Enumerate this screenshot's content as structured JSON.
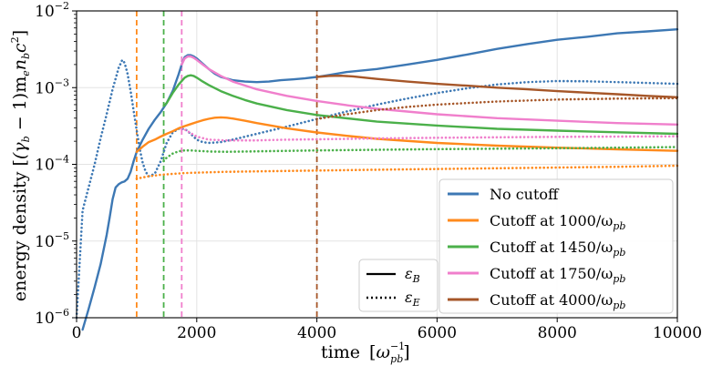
{
  "chart_data": {
    "type": "line",
    "title": "",
    "xlabel": {
      "text": "time",
      "unit_base": "ω",
      "unit_sub": "pb",
      "unit_sup": "−1"
    },
    "ylabel": {
      "prefix": "energy density ",
      "math": "(γ",
      "sub1": "b",
      "mid": " − 1)m",
      "sub2": "e",
      "n": "n",
      "sub3": "b",
      "c": "c",
      "sup": "2"
    },
    "xlim": [
      0,
      10000
    ],
    "ylim": [
      1e-06,
      0.01
    ],
    "yscale": "log",
    "x_ticks": [
      0,
      2000,
      4000,
      6000,
      8000,
      10000
    ],
    "x_tick_labels": [
      "0",
      "2000",
      "4000",
      "6000",
      "8000",
      "10000"
    ],
    "y_ticks": [
      {
        "base": "10",
        "exp": "−6",
        "value": 1e-06
      },
      {
        "base": "10",
        "exp": "−5",
        "value": 1e-05
      },
      {
        "base": "10",
        "exp": "−4",
        "value": 0.0001
      },
      {
        "base": "10",
        "exp": "−3",
        "value": 0.001
      },
      {
        "base": "10",
        "exp": "−2",
        "value": 0.01
      }
    ],
    "grid": true,
    "series": [
      {
        "name": "No cutoff",
        "color": "#3d78b4",
        "style": "solid",
        "x": [
          100,
          200,
          300,
          400,
          500,
          550,
          600,
          650,
          700,
          750,
          800,
          850,
          900,
          950,
          1000,
          1100,
          1200,
          1300,
          1400,
          1500,
          1600,
          1700,
          1750,
          1800,
          1850,
          1900,
          1950,
          2000,
          2100,
          2200,
          2300,
          2400,
          2600,
          2800,
          3000,
          3200,
          3400,
          3600,
          3800,
          4000,
          4200,
          4500,
          5000,
          5500,
          6000,
          6500,
          7000,
          7500,
          8000,
          8500,
          9000,
          9500,
          10000
        ],
        "y": [
          7e-07,
          1.3e-06,
          2.5e-06,
          5e-06,
          1.2e-05,
          2e-05,
          3.5e-05,
          5e-05,
          5.5e-05,
          5.8e-05,
          6e-05,
          6.5e-05,
          8e-05,
          0.00011,
          0.000145,
          0.00021,
          0.00029,
          0.00038,
          0.00048,
          0.00063,
          0.0009,
          0.0015,
          0.002,
          0.0025,
          0.00265,
          0.00265,
          0.00255,
          0.0024,
          0.00205,
          0.00175,
          0.00152,
          0.00138,
          0.00125,
          0.0012,
          0.00118,
          0.0012,
          0.00125,
          0.00128,
          0.00132,
          0.00138,
          0.00146,
          0.0016,
          0.00175,
          0.002,
          0.0023,
          0.0027,
          0.0032,
          0.0037,
          0.0042,
          0.0046,
          0.0051,
          0.0054,
          0.00575
        ]
      },
      {
        "name": "E field (No cutoff)",
        "color": "#3d78b4",
        "style": "dotted",
        "x": [
          0,
          100,
          200,
          300,
          400,
          500,
          600,
          700,
          760,
          800,
          850,
          900,
          950,
          1000,
          1050,
          1100,
          1150,
          1200,
          1300,
          1400,
          1500,
          1600,
          1700,
          1800,
          1900,
          2000,
          2100,
          2200,
          2400,
          2600,
          3000,
          3500,
          4000,
          4500,
          5000,
          5500,
          6000,
          6500,
          7000,
          7500,
          8000,
          8500,
          9000,
          9500,
          10000
        ],
        "y": [
          1e-06,
          2.5e-05,
          5e-05,
          0.0001,
          0.00022,
          0.00045,
          0.00095,
          0.0018,
          0.0023,
          0.0021,
          0.0015,
          0.0009,
          0.0005,
          0.00028,
          0.00016,
          0.000105,
          8e-05,
          7e-05,
          7.5e-05,
          0.00011,
          0.00019,
          0.00026,
          0.00029,
          0.00029,
          0.00025,
          0.00021,
          0.000195,
          0.00019,
          0.000195,
          0.00021,
          0.00025,
          0.00031,
          0.00039,
          0.00049,
          0.0006,
          0.00072,
          0.00085,
          0.00098,
          0.0011,
          0.00118,
          0.00122,
          0.00121,
          0.00118,
          0.00115,
          0.00112
        ]
      },
      {
        "name": "Cutoff at 1000/ω_pb (B)",
        "color": "#ff8a1c",
        "style": "solid",
        "x": [
          1000,
          1100,
          1200,
          1300,
          1400,
          1500,
          1600,
          1700,
          1800,
          1900,
          2000,
          2100,
          2200,
          2300,
          2400,
          2500,
          2600,
          2800,
          3000,
          3500,
          4000,
          4500,
          5000,
          6000,
          7000,
          8000,
          9000,
          10000
        ],
        "y": [
          0.000145,
          0.00017,
          0.000195,
          0.00021,
          0.00023,
          0.00025,
          0.00027,
          0.000295,
          0.000315,
          0.000335,
          0.000355,
          0.000375,
          0.000392,
          0.000405,
          0.00041,
          0.000405,
          0.000395,
          0.00037,
          0.000345,
          0.000295,
          0.00026,
          0.000235,
          0.000215,
          0.00019,
          0.000175,
          0.000165,
          0.000157,
          0.00015
        ]
      },
      {
        "name": "Cutoff at 1000/ω_pb (E)",
        "color": "#ff8a1c",
        "style": "dotted",
        "x": [
          1000,
          1200,
          1400,
          1600,
          1800,
          2000,
          2500,
          3000,
          4000,
          5000,
          6000,
          7000,
          8000,
          9000,
          10000
        ],
        "y": [
          6.5e-05,
          7e-05,
          7.3e-05,
          7.5e-05,
          7.7e-05,
          7.8e-05,
          8e-05,
          8.1e-05,
          8.3e-05,
          8.5e-05,
          8.7e-05,
          8.9e-05,
          9.1e-05,
          9.3e-05,
          9.6e-05
        ]
      },
      {
        "name": "Cutoff at 1450/ω_pb (B)",
        "color": "#4bb04a",
        "style": "solid",
        "x": [
          1450,
          1500,
          1600,
          1700,
          1800,
          1850,
          1900,
          1950,
          2000,
          2100,
          2200,
          2400,
          2600,
          2800,
          3000,
          3500,
          4000,
          5000,
          6000,
          7000,
          8000,
          9000,
          10000
        ],
        "y": [
          0.00058,
          0.00063,
          0.00085,
          0.0011,
          0.00135,
          0.00142,
          0.00145,
          0.00142,
          0.00135,
          0.0012,
          0.00108,
          0.0009,
          0.00078,
          0.00069,
          0.00062,
          0.00051,
          0.00044,
          0.00036,
          0.00032,
          0.00029,
          0.000275,
          0.000262,
          0.00025
        ]
      },
      {
        "name": "Cutoff at 1450/ω_pb (E)",
        "color": "#4bb04a",
        "style": "dotted",
        "x": [
          1450,
          1500,
          1600,
          1700,
          1800,
          1900,
          2000,
          2200,
          2500,
          3000,
          3500,
          4000,
          5000,
          6000,
          7000,
          8000,
          9000,
          10000
        ],
        "y": [
          0.00011,
          0.000122,
          0.000138,
          0.000148,
          0.000152,
          0.000152,
          0.00015,
          0.000147,
          0.000146,
          0.000148,
          0.00015,
          0.000152,
          0.000155,
          0.000158,
          0.00016,
          0.000162,
          0.000165,
          0.000168
        ]
      },
      {
        "name": "Cutoff at 1750/ω_pb (B)",
        "color": "#f07fcc",
        "style": "solid",
        "x": [
          1750,
          1800,
          1850,
          1900,
          1950,
          2000,
          2100,
          2200,
          2400,
          2600,
          3000,
          3500,
          4000,
          4500,
          5000,
          6000,
          7000,
          8000,
          9000,
          10000
        ],
        "y": [
          0.002,
          0.0024,
          0.00255,
          0.00255,
          0.00245,
          0.0023,
          0.002,
          0.00175,
          0.00142,
          0.0012,
          0.00095,
          0.00078,
          0.00067,
          0.00059,
          0.00053,
          0.00045,
          0.0004,
          0.00037,
          0.000345,
          0.00033
        ]
      },
      {
        "name": "Cutoff at 1750/ω_pb (E)",
        "color": "#f07fcc",
        "style": "dotted",
        "x": [
          1750,
          1800,
          1900,
          2000,
          2200,
          2500,
          3000,
          3500,
          4000,
          5000,
          6000,
          7000,
          8000,
          9000,
          10000
        ],
        "y": [
          0.00029,
          0.000285,
          0.000255,
          0.00023,
          0.00021,
          0.000205,
          0.000205,
          0.00021,
          0.000212,
          0.000218,
          0.000222,
          0.000225,
          0.000228,
          0.00023,
          0.000232
        ]
      },
      {
        "name": "Cutoff at 4000/ω_pb (B)",
        "color": "#a65628",
        "style": "solid",
        "x": [
          4000,
          4200,
          4400,
          4600,
          4800,
          5000,
          5500,
          6000,
          6500,
          7000,
          7500,
          8000,
          8500,
          9000,
          9500,
          10000
        ],
        "y": [
          0.00138,
          0.00142,
          0.00143,
          0.0014,
          0.00135,
          0.0013,
          0.0012,
          0.00112,
          0.00106,
          0.001,
          0.00095,
          0.0009,
          0.00086,
          0.00082,
          0.00078,
          0.00075
        ]
      },
      {
        "name": "Cutoff at 4000/ω_pb (E)",
        "color": "#a65628",
        "style": "dotted",
        "x": [
          4000,
          4500,
          5000,
          5500,
          6000,
          6500,
          7000,
          7500,
          8000,
          8500,
          9000,
          9500,
          10000
        ],
        "y": [
          0.00039,
          0.00045,
          0.00051,
          0.00056,
          0.0006,
          0.00063,
          0.00066,
          0.00068,
          0.0007,
          0.00071,
          0.00072,
          0.000725,
          0.00073
        ]
      }
    ],
    "vlines": [
      {
        "x": 1000,
        "color": "#ff8a1c"
      },
      {
        "x": 1450,
        "color": "#4bb04a"
      },
      {
        "x": 1750,
        "color": "#f07fcc"
      },
      {
        "x": 4000,
        "color": "#a65628"
      }
    ],
    "legend_style": {
      "placement": "lower-left",
      "entries": [
        {
          "label": "ε",
          "sub": "B",
          "style": "solid"
        },
        {
          "label": "ε",
          "sub": "E",
          "style": "dotted"
        }
      ]
    },
    "legend_series": {
      "placement": "lower-right",
      "entries": [
        {
          "label": "No cutoff",
          "color": "#3d78b4"
        },
        {
          "label": "Cutoff at 1000/ω",
          "sub": "pb",
          "color": "#ff8a1c"
        },
        {
          "label": "Cutoff at 1450/ω",
          "sub": "pb",
          "color": "#4bb04a"
        },
        {
          "label": "Cutoff at 1750/ω",
          "sub": "pb",
          "color": "#f07fcc"
        },
        {
          "label": "Cutoff at 4000/ω",
          "sub": "pb",
          "color": "#a65628"
        }
      ]
    }
  }
}
